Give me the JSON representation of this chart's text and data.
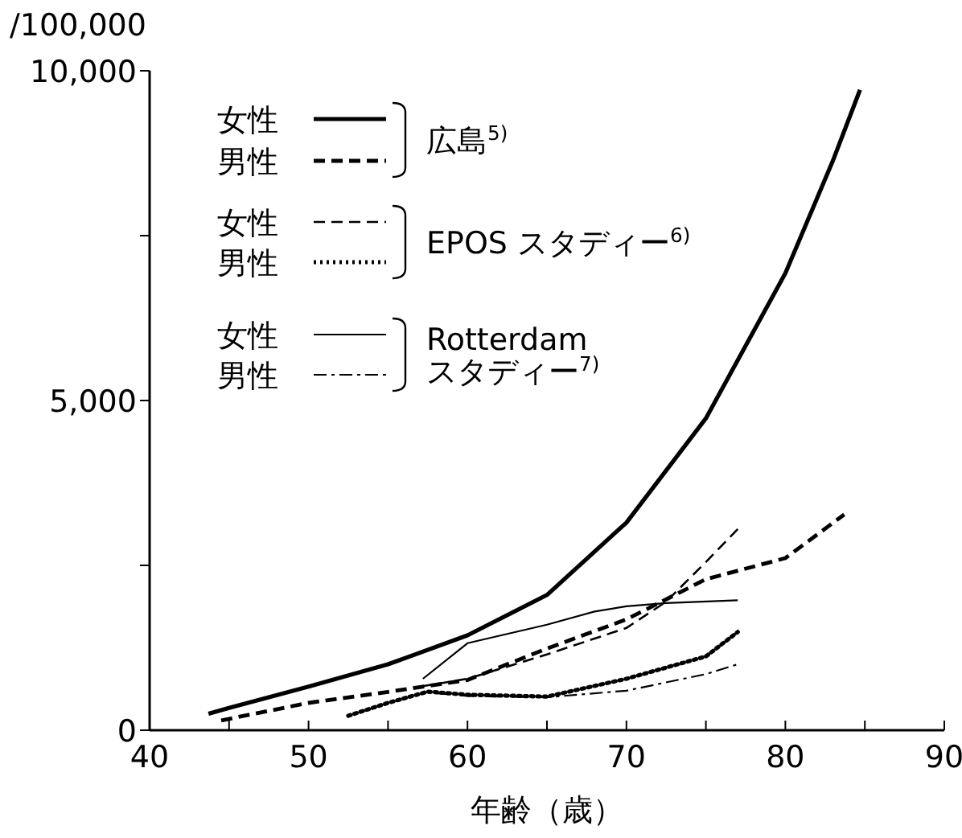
{
  "chart_data": {
    "type": "line",
    "xlabel": "年齢（歳）",
    "ylabel": "/100,000",
    "xlim": [
      40,
      90
    ],
    "xticks": [
      40,
      {
        "value": 45,
        "label": null
      },
      50,
      {
        "value": 55,
        "label": null
      },
      60,
      {
        "value": 65,
        "label": null
      },
      70,
      {
        "value": 75,
        "label": null
      },
      80,
      {
        "value": 85,
        "label": null
      },
      90
    ],
    "ylim": [
      0,
      10000
    ],
    "yticks": [
      {
        "value": 0,
        "label": "0"
      },
      {
        "value": 2500,
        "label": null
      },
      {
        "value": 5000,
        "label": "5,000"
      },
      {
        "value": 7500,
        "label": null
      },
      {
        "value": 10000,
        "label": "10,000"
      }
    ],
    "grid": false,
    "legend": "top left",
    "annotations": [
      "広島$^{5)}$",
      "EPOS スタディー$^{6)}$",
      "Rotterdam\nスタディー$^{7)}$"
    ],
    "series": [
      {
        "name": "女性",
        "color": "#000000",
        "line_style": "solid",
        "x": [
          43.7,
          45,
          50,
          55,
          60,
          65,
          70,
          75,
          80,
          83,
          84.7
        ],
        "values": [
          250,
          340,
          660,
          1000,
          1440,
          2050,
          3150,
          4730,
          6930,
          8640,
          9710
        ]
      },
      {
        "name": "男性",
        "color": "#000000",
        "line_style": "dashed",
        "x": [
          44.5,
          50,
          55,
          60,
          65,
          70,
          75,
          80,
          83.7
        ],
        "values": [
          150,
          415,
          580,
          760,
          1240,
          1680,
          2290,
          2610,
          3270
        ]
      },
      {
        "name": "女性",
        "color": "#000000",
        "line_style": "dashed",
        "x": [
          57,
          60,
          65,
          70,
          72.5,
          75,
          77
        ],
        "values": [
          660,
          780,
          1150,
          1550,
          1950,
          2550,
          3050
        ]
      },
      {
        "name": "男性",
        "color": "#000000",
        "line_style": "dotted",
        "x": [
          52.5,
          55,
          57.5,
          60,
          65,
          70,
          75,
          77
        ],
        "values": [
          220,
          415,
          585,
          540,
          510,
          780,
          1120,
          1490
        ]
      },
      {
        "name": "女性",
        "color": "#000000",
        "line_style": "solid",
        "x": [
          57.2,
          60,
          65,
          68,
          70,
          72.5,
          77
        ],
        "values": [
          780,
          1320,
          1600,
          1800,
          1880,
          1930,
          1970
        ]
      },
      {
        "name": "男性",
        "color": "#000000",
        "line_style": "dashdot",
        "x": [
          58,
          60,
          65,
          70,
          75,
          77
        ],
        "values": [
          560,
          520,
          500,
          600,
          850,
          1000
        ]
      }
    ]
  }
}
